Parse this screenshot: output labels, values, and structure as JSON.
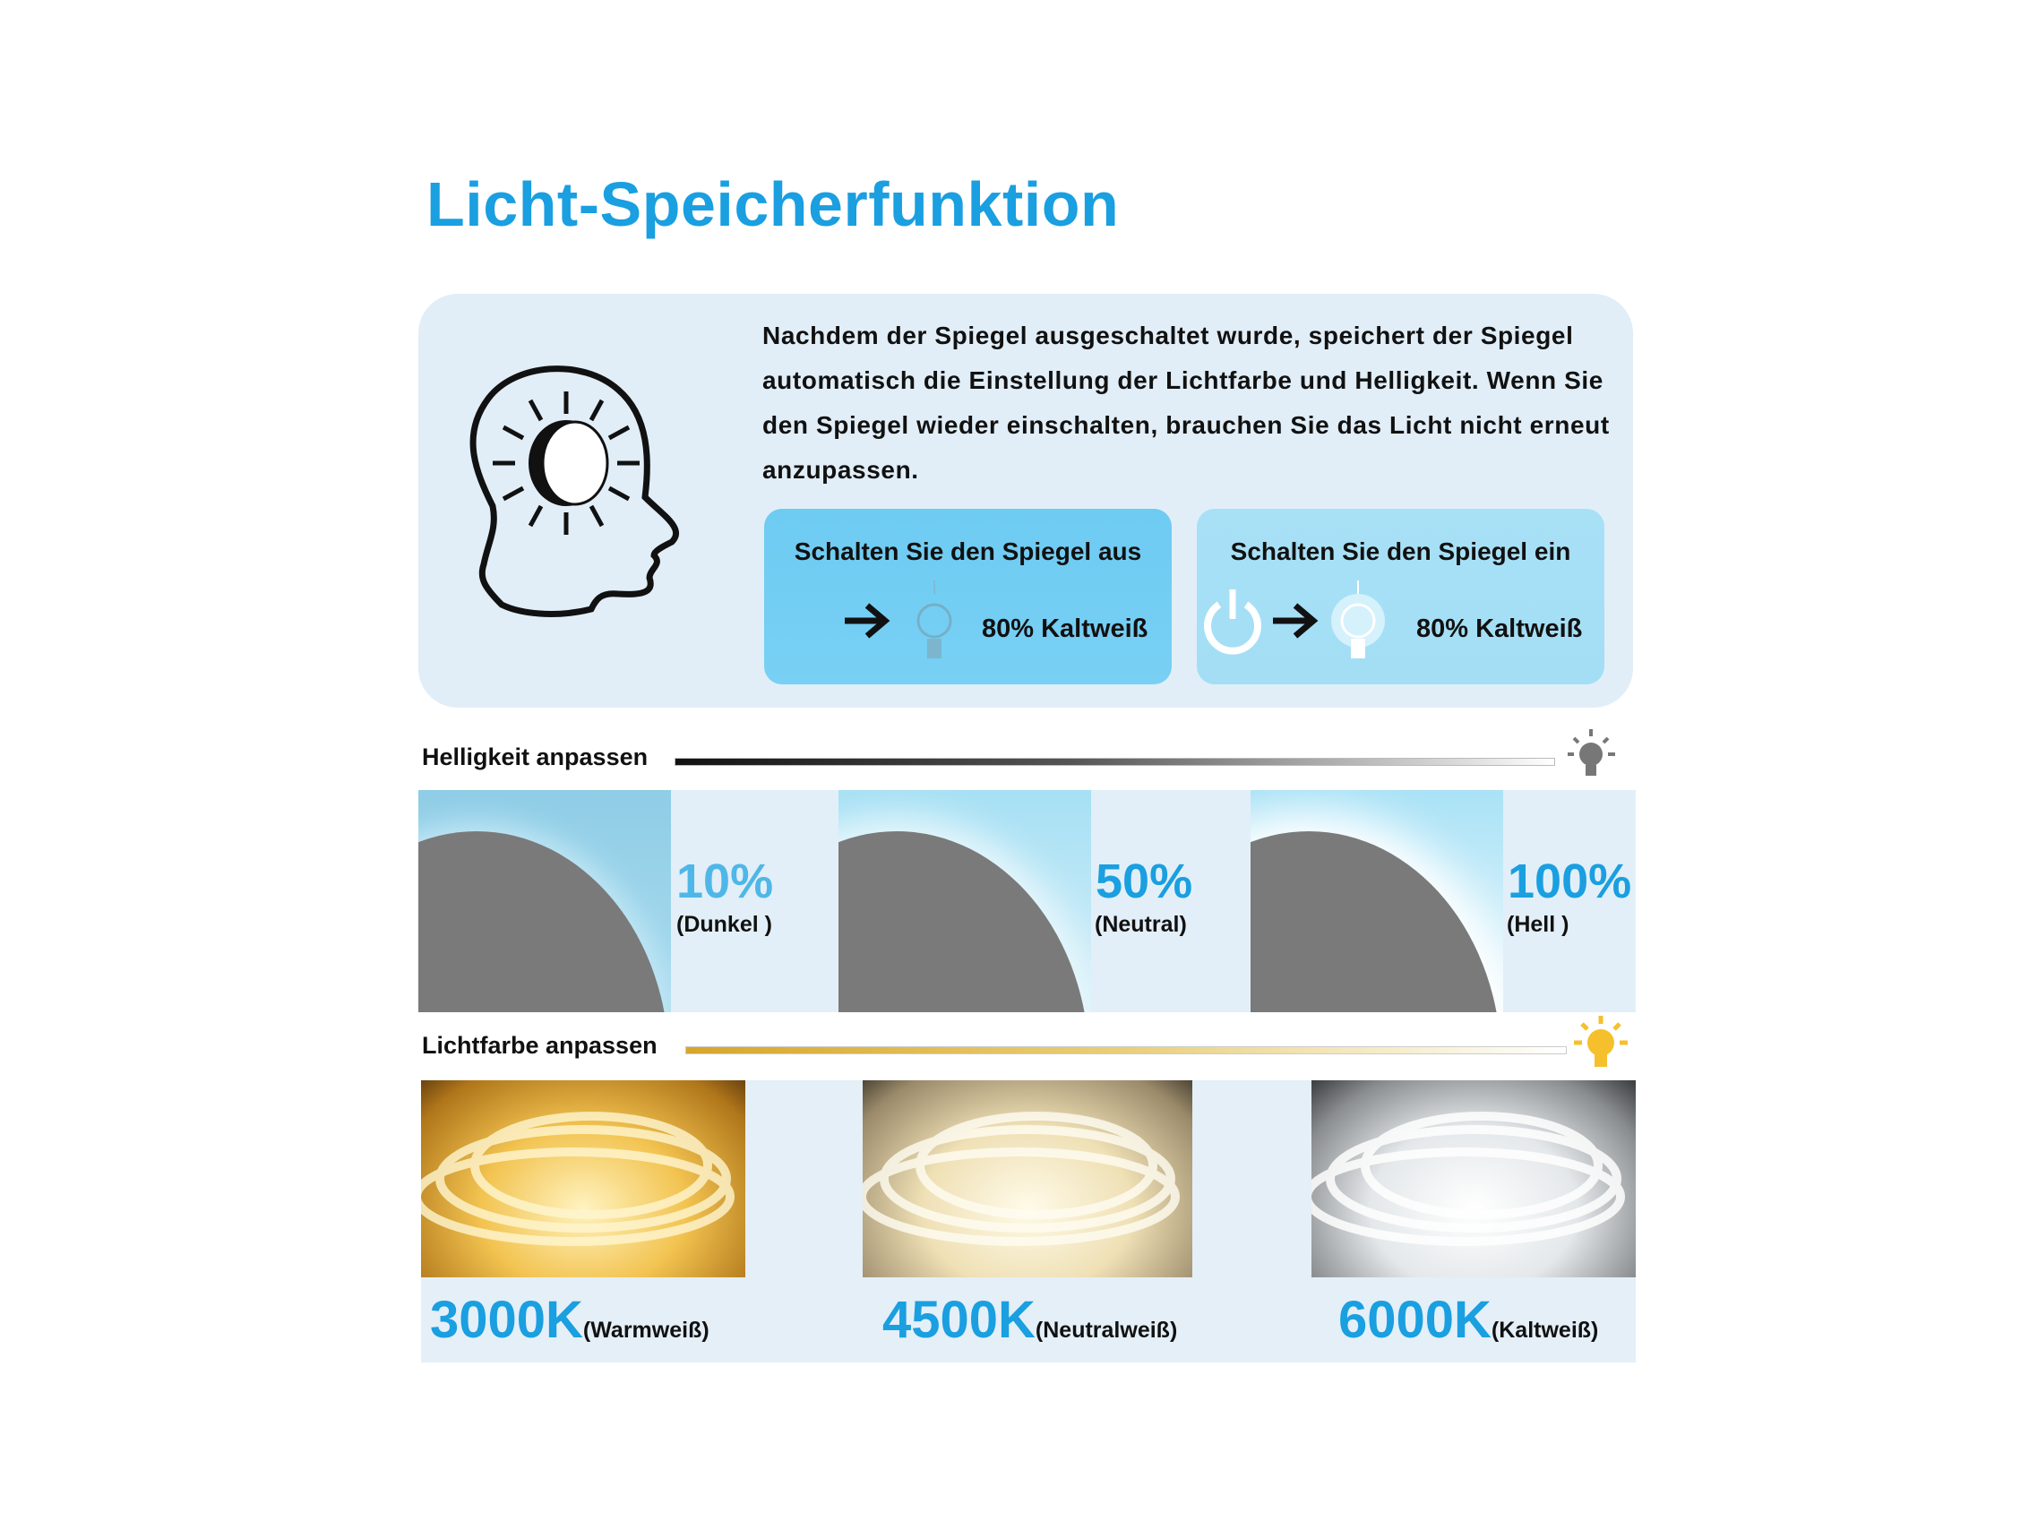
{
  "title": "Licht-Speicherfunktion",
  "intro": {
    "icon": "head-with-sun-moon-icon",
    "text": "Nachdem der Spiegel ausgeschaltet wurde, speichert der Spiegel automatisch die Einstellung der Lichtfarbe und Helligkeit. Wenn Sie den Spiegel wieder einschalten, brauchen Sie das Licht nicht erneut anzupassen."
  },
  "steps": [
    {
      "label": "Schalten Sie den Spiegel aus",
      "value": "80% Kaltweiß",
      "icons": [
        "arrow-right-icon",
        "bulb-off-icon"
      ]
    },
    {
      "label": "Schalten Sie den Spiegel ein",
      "value": "80% Kaltweiß",
      "icons": [
        "power-icon",
        "arrow-right-icon",
        "bulb-on-icon"
      ]
    }
  ],
  "brightness": {
    "label": "Helligkeit anpassen",
    "levels": [
      {
        "percent": "10%",
        "name": "(Dunkel )",
        "color": "#4fb7e8"
      },
      {
        "percent": "50%",
        "name": "(Neutral)",
        "color": "#1a9fe0"
      },
      {
        "percent": "100%",
        "name": "(Hell )",
        "color": "#1a9fe0"
      }
    ]
  },
  "color_temp": {
    "label": "Lichtfarbe anpassen",
    "options": [
      {
        "kelvin": "3000K",
        "name": "(Warmweiß)",
        "tone": "#f5c24a"
      },
      {
        "kelvin": "4500K",
        "name": "(Neutralweiß)",
        "tone": "#f3e2b0"
      },
      {
        "kelvin": "6000K",
        "name": "(Kaltweiß)",
        "tone": "#eef2f4"
      }
    ]
  },
  "colors": {
    "accent": "#1a9fe0",
    "panel": "#e1eef8"
  }
}
